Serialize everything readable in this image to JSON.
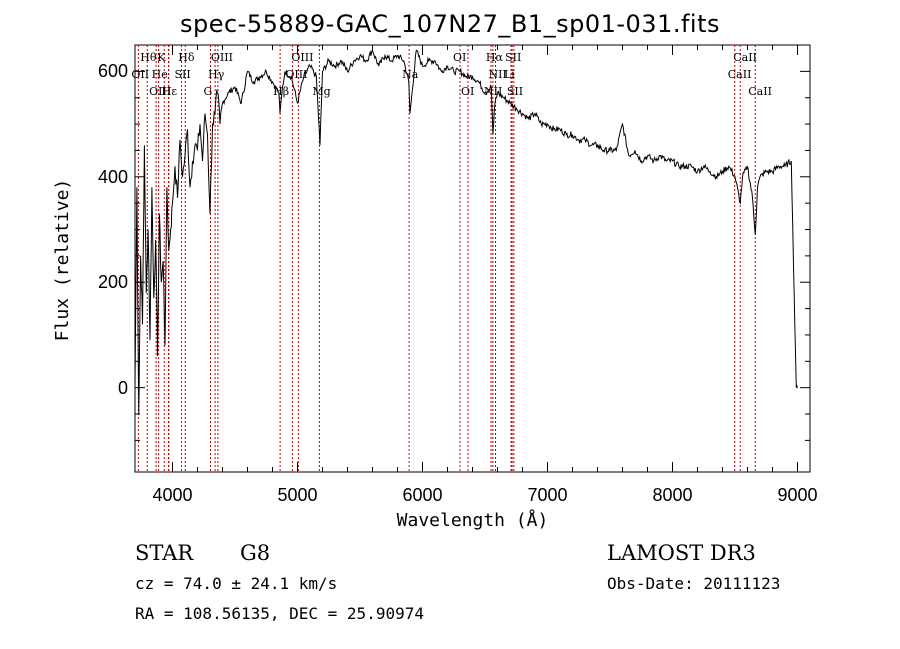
{
  "chart_data": {
    "type": "line",
    "title": "spec-55889-GAC_107N27_B1_sp01-031.fits",
    "xlabel": "Wavelength (Å)",
    "ylabel": "Flux (relative)",
    "xlim": [
      3700,
      9100
    ],
    "ylim": [
      -160,
      650
    ],
    "x_ticks": [
      4000,
      5000,
      6000,
      7000,
      8000,
      9000
    ],
    "y_ticks": [
      0,
      200,
      400,
      600
    ],
    "series": [
      {
        "name": "flux",
        "x": [
          3700,
          3715,
          3730,
          3745,
          3760,
          3775,
          3790,
          3805,
          3820,
          3835,
          3850,
          3865,
          3880,
          3895,
          3910,
          3925,
          3940,
          3955,
          3970,
          3985,
          4000,
          4020,
          4040,
          4060,
          4080,
          4100,
          4120,
          4140,
          4160,
          4180,
          4200,
          4220,
          4240,
          4260,
          4280,
          4300,
          4320,
          4340,
          4360,
          4380,
          4400,
          4450,
          4500,
          4550,
          4600,
          4650,
          4700,
          4750,
          4800,
          4850,
          4860,
          4880,
          4900,
          4950,
          5000,
          5050,
          5100,
          5150,
          5180,
          5200,
          5250,
          5300,
          5350,
          5400,
          5450,
          5500,
          5550,
          5600,
          5650,
          5700,
          5750,
          5800,
          5850,
          5890,
          5900,
          5950,
          6000,
          6050,
          6100,
          6150,
          6200,
          6250,
          6300,
          6350,
          6400,
          6450,
          6500,
          6550,
          6563,
          6580,
          6600,
          6650,
          6700,
          6750,
          6800,
          6850,
          6900,
          6950,
          7000,
          7050,
          7100,
          7150,
          7200,
          7250,
          7300,
          7350,
          7400,
          7450,
          7500,
          7550,
          7600,
          7650,
          7700,
          7750,
          7800,
          7850,
          7900,
          7950,
          8000,
          8050,
          8100,
          8150,
          8200,
          8250,
          8300,
          8350,
          8400,
          8450,
          8500,
          8542,
          8560,
          8600,
          8640,
          8662,
          8680,
          8700,
          8750,
          8800,
          8850,
          8900,
          8950,
          8990,
          9000
        ],
        "y": [
          0,
          380,
          -50,
          250,
          120,
          460,
          180,
          300,
          90,
          380,
          170,
          280,
          60,
          330,
          200,
          240,
          80,
          380,
          260,
          300,
          350,
          420,
          360,
          470,
          400,
          440,
          490,
          380,
          430,
          460,
          450,
          500,
          430,
          520,
          480,
          330,
          500,
          520,
          560,
          500,
          540,
          560,
          570,
          540,
          600,
          580,
          590,
          600,
          580,
          560,
          520,
          570,
          600,
          590,
          540,
          590,
          610,
          590,
          460,
          600,
          620,
          610,
          620,
          600,
          620,
          630,
          620,
          640,
          610,
          630,
          620,
          630,
          620,
          580,
          520,
          640,
          610,
          620,
          620,
          600,
          610,
          600,
          600,
          590,
          590,
          580,
          560,
          570,
          480,
          540,
          560,
          550,
          540,
          530,
          520,
          510,
          520,
          500,
          500,
          490,
          490,
          480,
          480,
          470,
          470,
          460,
          460,
          450,
          450,
          450,
          500,
          440,
          450,
          430,
          440,
          430,
          440,
          430,
          430,
          420,
          420,
          420,
          410,
          420,
          410,
          400,
          410,
          420,
          400,
          350,
          400,
          420,
          360,
          290,
          380,
          400,
          410,
          410,
          420,
          420,
          430,
          0,
          0
        ]
      }
    ],
    "lines": [
      {
        "label": "Hθ",
        "x": 3798,
        "row": 0
      },
      {
        "label": "K",
        "x": 3934,
        "row": 0
      },
      {
        "label": "Hδ",
        "x": 4102,
        "row": 0
      },
      {
        "label": "OIII",
        "x": 4363,
        "row": 0
      },
      {
        "label": "OIII",
        "x": 5007,
        "row": 0
      },
      {
        "label": "OI",
        "x": 6300,
        "row": 0
      },
      {
        "label": "Hα",
        "x": 6563,
        "row": 0
      },
      {
        "label": "SII",
        "x": 6717,
        "row": 0
      },
      {
        "label": "CaII",
        "x": 8542,
        "row": 0
      },
      {
        "label": "OII",
        "x": 3727,
        "row": 1
      },
      {
        "label": "He",
        "x": 3889,
        "row": 1
      },
      {
        "label": "SII",
        "x": 4072,
        "row": 1
      },
      {
        "label": "Hγ",
        "x": 4341,
        "row": 1
      },
      {
        "label": "OIII",
        "x": 4959,
        "row": 1
      },
      {
        "label": "Na",
        "x": 5893,
        "row": 1
      },
      {
        "label": "NII",
        "x": 6584,
        "row": 1
      },
      {
        "label": "Li",
        "x": 6708,
        "row": 1
      },
      {
        "label": "CaII",
        "x": 8498,
        "row": 1
      },
      {
        "label": "OIII",
        "x": 3869,
        "row": 2
      },
      {
        "label": "Hε",
        "x": 3970,
        "row": 2
      },
      {
        "label": "H",
        "x": 3968,
        "row": 2
      },
      {
        "label": "G",
        "x": 4304,
        "row": 2
      },
      {
        "label": "Hβ",
        "x": 4861,
        "row": 2
      },
      {
        "label": "Mg",
        "x": 5175,
        "row": 2
      },
      {
        "label": "OI",
        "x": 6364,
        "row": 2
      },
      {
        "label": "NII",
        "x": 6548,
        "row": 2
      },
      {
        "label": "SII",
        "x": 6731,
        "row": 2
      },
      {
        "label": "CaII",
        "x": 8662,
        "row": 2
      }
    ]
  },
  "footer": {
    "class_label": "STAR",
    "subclass": "G8",
    "survey": "LAMOST DR3",
    "redshift": "cz = 74.0 ± 24.1 km/s",
    "obs_date": "Obs-Date: 20111123",
    "coords": "RA = 108.56135, DEC =  25.90974"
  }
}
